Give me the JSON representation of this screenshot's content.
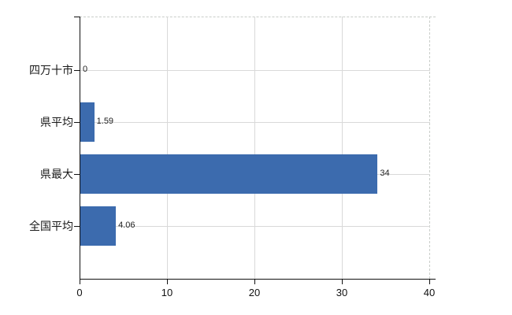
{
  "chart_data": {
    "type": "bar",
    "orientation": "horizontal",
    "title": "",
    "categories": [
      "四万十市",
      "県平均",
      "県最大",
      "全国平均"
    ],
    "values": [
      0,
      1.59,
      34,
      4.06
    ],
    "value_labels": [
      "0",
      "1.59",
      "34",
      "4.06"
    ],
    "xticks": [
      0,
      10,
      20,
      30,
      40
    ],
    "xtick_labels": [
      "0",
      "10",
      "20",
      "30",
      "40"
    ],
    "xlim": [
      0,
      40
    ],
    "grid": true,
    "legend": false,
    "bar_color": "#3c6bae",
    "axis_color": "#111111",
    "gridline_color": "#d9d9d9"
  }
}
